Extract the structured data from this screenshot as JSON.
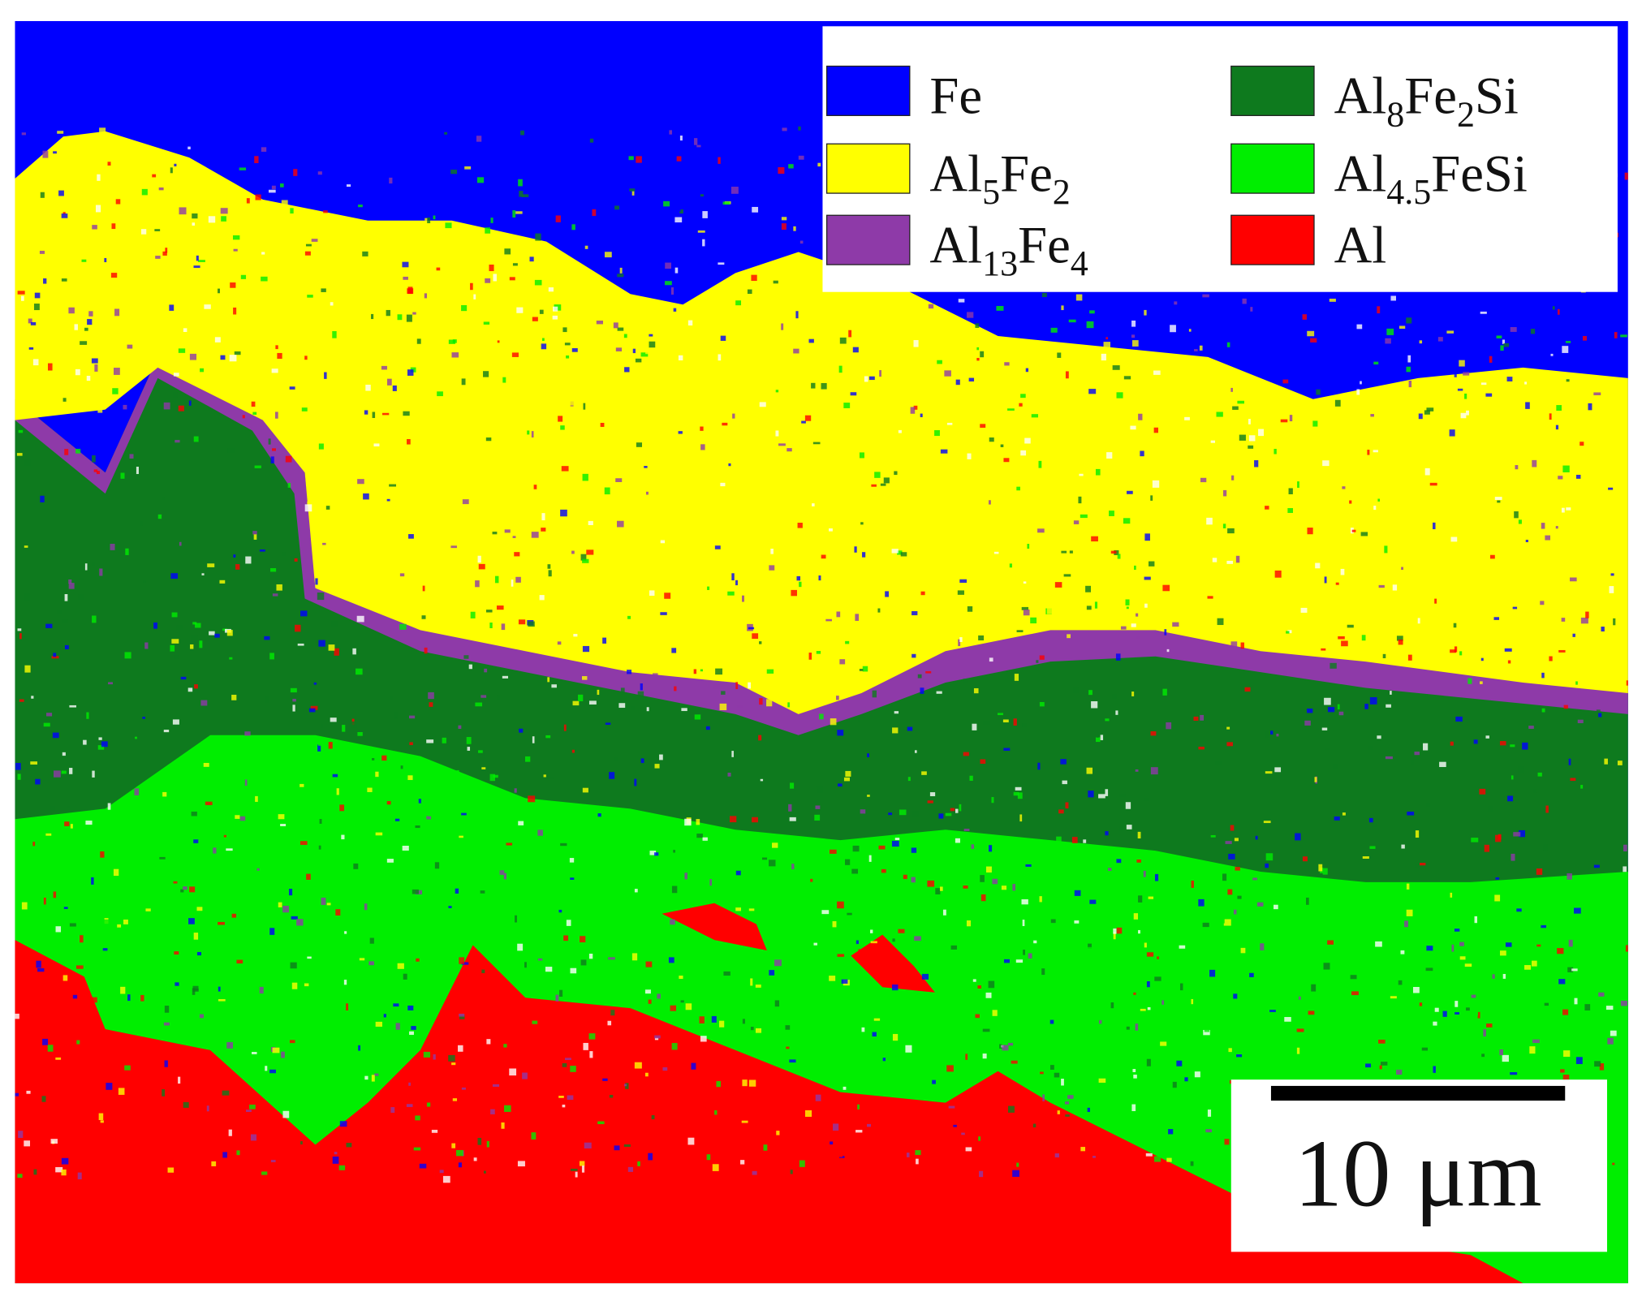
{
  "legend": {
    "items": [
      {
        "color": "#0000ff",
        "parts": [
          {
            "text": "Fe"
          }
        ]
      },
      {
        "color": "#ffff00",
        "parts": [
          {
            "text": "Al"
          },
          {
            "sub": "5"
          },
          {
            "text": "Fe"
          },
          {
            "sub": "2"
          }
        ]
      },
      {
        "color": "#8e3aa8",
        "parts": [
          {
            "text": "Al"
          },
          {
            "sub": "13"
          },
          {
            "text": "Fe"
          },
          {
            "sub": "4"
          }
        ]
      },
      {
        "color": "#0e7a1e",
        "parts": [
          {
            "text": "Al"
          },
          {
            "sub": "8"
          },
          {
            "text": "Fe"
          },
          {
            "sub": "2"
          },
          {
            "text": "Si"
          }
        ]
      },
      {
        "color": "#00ee00",
        "parts": [
          {
            "text": "Al"
          },
          {
            "sub": "4.5"
          },
          {
            "text": "FeSi"
          }
        ]
      },
      {
        "color": "#ff0000",
        "parts": [
          {
            "text": "Al"
          }
        ]
      }
    ]
  },
  "scale_bar": {
    "label": "10 μm"
  }
}
